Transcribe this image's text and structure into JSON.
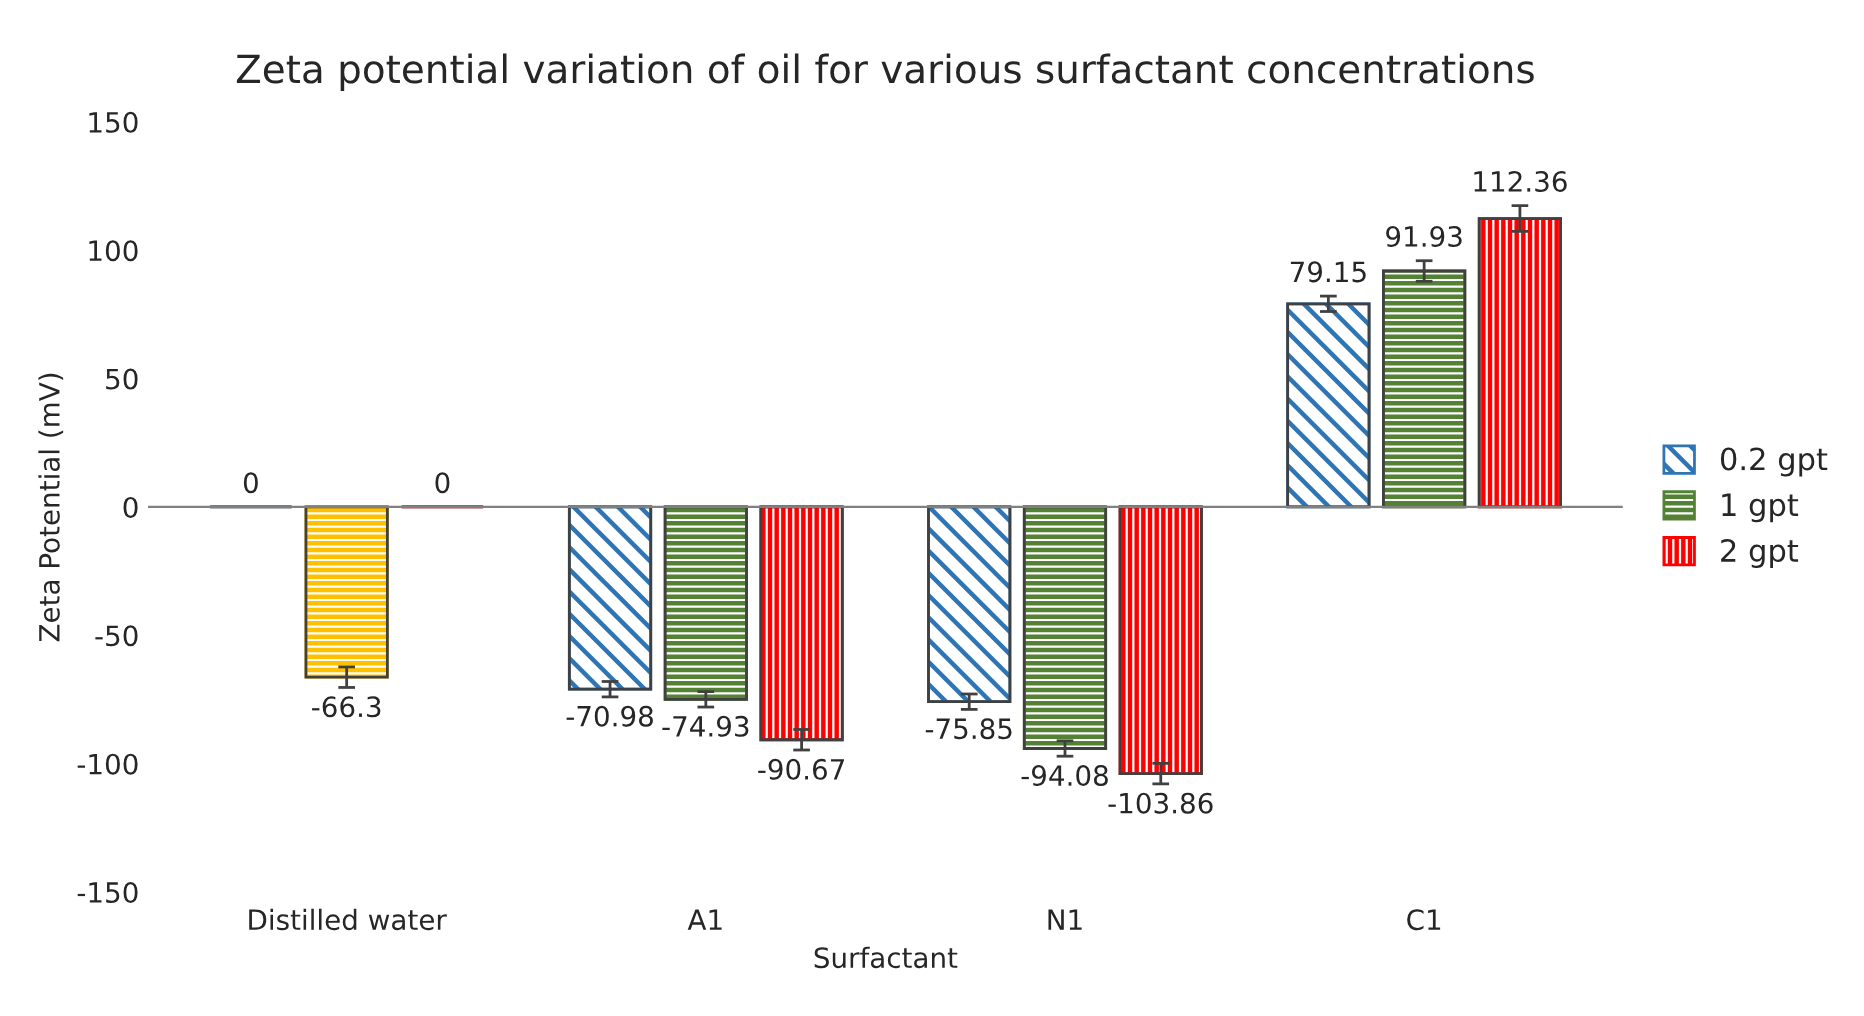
{
  "chart_data": {
    "type": "bar",
    "title": "Zeta potential variation of oil for various surfactant concentrations",
    "xlabel": "Surfactant",
    "ylabel": "Zeta Potential (mV)",
    "categories": [
      "Distilled water",
      "A1",
      "N1",
      "C1"
    ],
    "series": [
      {
        "name": "0.2 gpt",
        "color": "#2e75b6",
        "values": [
          0,
          -70.98,
          -75.85,
          79.15
        ],
        "errors": [
          null,
          3,
          3,
          3
        ]
      },
      {
        "name": "1 gpt",
        "color": "#548235",
        "colors": [
          "#ffc000",
          "#548235",
          "#548235",
          "#548235"
        ],
        "values": [
          -66.3,
          -74.93,
          -94.08,
          91.93
        ],
        "errors": [
          4,
          3,
          3,
          4
        ]
      },
      {
        "name": "2 gpt",
        "color": "#ff0000",
        "values": [
          0,
          -90.67,
          -103.86,
          112.36
        ],
        "errors": [
          null,
          4,
          4,
          5
        ]
      }
    ],
    "ylim": [
      -150,
      150
    ],
    "yticks": [
      -150,
      -100,
      -50,
      0,
      50,
      100,
      150
    ],
    "data_labels": true,
    "legend": "right"
  }
}
